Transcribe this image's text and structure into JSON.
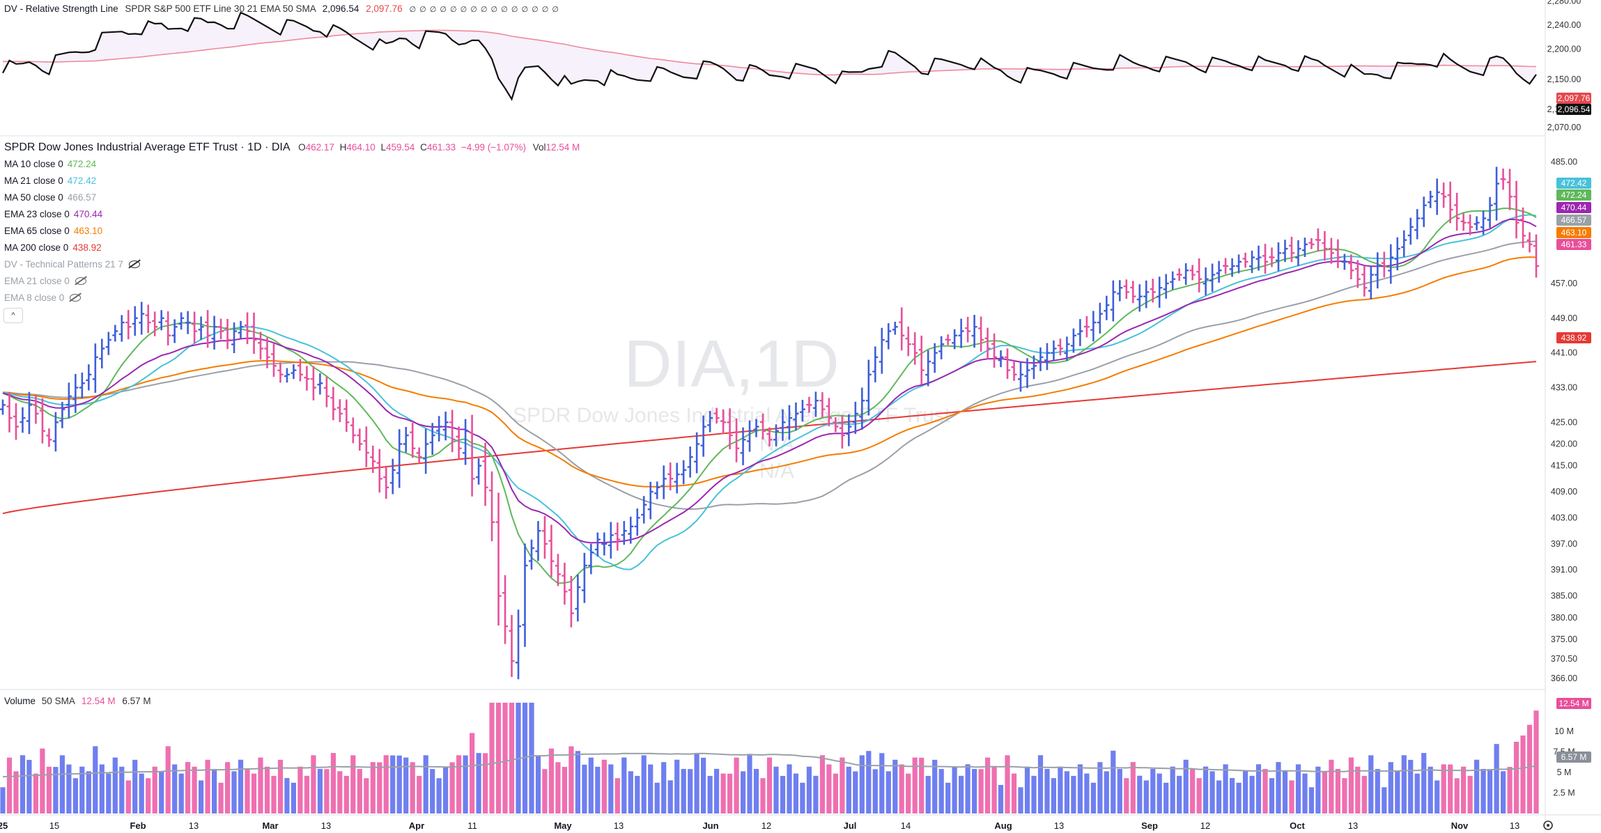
{
  "top_panel": {
    "title": "DV - Relative Strength Line",
    "params": "SPDR S&P 500 ETF Line 30 21 EMA 50 SMA",
    "value1": "2,096.54",
    "value2": "2,097.76",
    "placeholder_symbols": "∅ ∅ ∅ ∅ ∅ ∅ ∅ ∅ ∅ ∅ ∅ ∅ ∅ ∅ ∅",
    "axis_ticks": [
      "2,280.00",
      "2,240.00",
      "2,200.00",
      "2,150.00",
      "2,100.00",
      "2,070.00"
    ],
    "tag_red": "2,097.76",
    "tag_black": "2,096.54"
  },
  "main_panel": {
    "title": "SPDR Dow Jones Industrial Average ETF Trust · 1D · DIA",
    "o_label": "O",
    "o_val": "462.17",
    "h_label": "H",
    "h_val": "464.10",
    "l_label": "L",
    "l_val": "459.54",
    "c_label": "C",
    "c_val": "461.33",
    "change": "−4.99 (−1.07%)",
    "vol_label": "Vol",
    "vol_val": "12.54 M",
    "watermark_symbol": "DIA,1D",
    "watermark_name": "SPDR Dow Jones Industrial Average ETF Trust",
    "watermark_na1": "N/A",
    "watermark_na2": "N/A",
    "indicators": [
      {
        "label": "MA 10 close 0",
        "value": "472.24",
        "color": "#5fb85a"
      },
      {
        "label": "MA 21 close 0",
        "value": "472.42",
        "color": "#48c1d9"
      },
      {
        "label": "MA 50 close 0",
        "value": "466.57",
        "color": "#9aa0a8"
      },
      {
        "label": "EMA 23 close 0",
        "value": "470.44",
        "color": "#9c27b0"
      },
      {
        "label": "EMA 65 close 0",
        "value": "463.10",
        "color": "#f57c00"
      },
      {
        "label": "MA 200 close 0",
        "value": "438.92",
        "color": "#e53935"
      }
    ],
    "hidden_indicators": [
      {
        "label": "DV - Technical Patterns 21 7"
      },
      {
        "label": "EMA 21 close 0"
      },
      {
        "label": "EMA 8 close 0"
      }
    ],
    "collapse_glyph": "^",
    "axis_ticks": [
      "485.00",
      "457.00",
      "449.00",
      "441.00",
      "433.00",
      "425.00",
      "420.00",
      "415.00",
      "409.00",
      "403.00",
      "397.00",
      "391.00",
      "385.00",
      "380.00",
      "375.00",
      "370.50",
      "366.00"
    ],
    "tags": [
      {
        "text": "472.42",
        "color": "#48c1d9"
      },
      {
        "text": "472.24",
        "color": "#5fb85a"
      },
      {
        "text": "470.44",
        "color": "#9c27b0"
      },
      {
        "text": "466.57",
        "color": "#9aa0a8"
      },
      {
        "text": "463.10",
        "color": "#f57c00"
      },
      {
        "text": "461.33",
        "color": "#e84f9a"
      },
      {
        "text": "438.92",
        "color": "#e53935"
      }
    ]
  },
  "volume_panel": {
    "title": "Volume",
    "params": "50 SMA",
    "v1": "12.54 M",
    "v2": "6.57 M",
    "axis_ticks": [
      "10 M",
      "7.5 M",
      "5 M",
      "2.5 M"
    ],
    "tag_pink": "12.54 M",
    "tag_gray": "6.57 M"
  },
  "x_axis": {
    "ticks": [
      "25",
      "15",
      "Feb",
      "13",
      "Mar",
      "13",
      "Apr",
      "11",
      "May",
      "13",
      "Jun",
      "12",
      "Jul",
      "14",
      "Aug",
      "13",
      "Sep",
      "12",
      "Oct",
      "13",
      "Nov",
      "13"
    ]
  },
  "chart_data": {
    "type": "ohlc",
    "title": "SPDR Dow Jones Industrial Average ETF Trust · 1D · DIA",
    "ylim": [
      366,
      487
    ],
    "up_color": "#3f5fd8",
    "down_color": "#e84f9a",
    "close_approx": [
      429,
      426,
      424,
      426,
      429,
      427,
      423,
      421,
      425,
      428,
      431,
      433,
      434,
      436,
      440,
      442,
      444,
      446,
      448,
      447,
      449,
      450,
      448,
      447,
      449,
      445,
      447,
      449,
      448,
      446,
      447,
      445,
      447,
      446,
      444,
      446,
      447,
      446,
      444,
      442,
      440,
      438,
      436,
      436,
      437,
      436,
      435,
      433,
      434,
      431,
      428,
      427,
      425,
      422,
      420,
      418,
      416,
      412,
      410,
      414,
      420,
      422,
      419,
      417,
      420,
      422,
      424,
      425,
      421,
      419,
      423,
      412,
      415,
      410,
      402,
      385,
      378,
      370,
      378,
      392,
      396,
      400,
      397,
      393,
      390,
      386,
      381,
      387,
      392,
      395,
      398,
      397,
      399,
      398,
      400,
      401,
      403,
      406,
      409,
      410,
      412,
      412,
      413,
      414,
      417,
      420,
      424,
      426,
      426,
      425,
      422,
      419,
      421,
      423,
      424,
      423,
      421,
      423,
      425,
      426,
      427,
      428,
      429,
      430,
      428,
      426,
      424,
      422,
      424,
      427,
      430,
      436,
      440,
      444,
      446,
      447,
      445,
      443,
      441,
      437,
      439,
      441,
      443,
      444,
      445,
      446,
      446,
      447,
      444,
      442,
      440,
      440,
      437,
      436,
      436,
      437,
      438,
      440,
      441,
      442,
      442,
      443,
      445,
      446,
      447,
      448,
      450,
      452,
      455,
      456,
      455,
      454,
      454,
      455,
      455,
      456,
      457,
      458,
      459,
      460,
      459,
      458,
      458,
      459,
      460,
      461,
      461,
      462,
      462,
      463,
      463,
      462,
      463,
      464,
      465,
      464,
      465,
      466,
      466,
      467,
      465,
      464,
      463,
      462,
      460,
      458,
      456,
      459,
      461,
      461,
      463,
      465,
      467,
      470,
      472,
      475,
      477,
      478,
      477,
      474,
      472,
      471,
      470,
      471,
      472,
      475,
      480,
      481,
      477,
      471,
      468,
      466,
      461
    ],
    "ma200_range": [
      404,
      439
    ],
    "relative_strength_range": [
      2070,
      2270
    ],
    "volume_max_millions": 14,
    "volume_last_millions": 12.54,
    "volume_sma_millions": 6.57
  }
}
